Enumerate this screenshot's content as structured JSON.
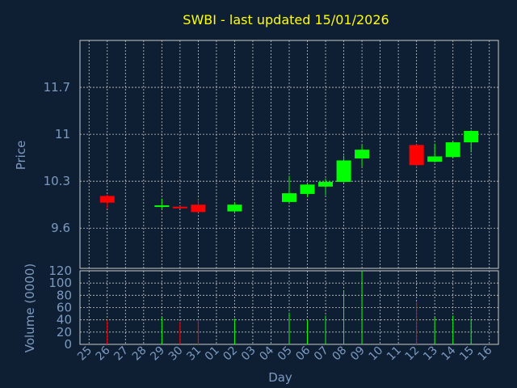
{
  "chart_data": [
    {
      "type": "candlestick",
      "title": "SWBI - last updated 15/01/2026",
      "ylabel": "Price",
      "ylim": [
        9.0,
        12.4
      ],
      "yticks": [
        "9.6",
        "10.3",
        "11",
        "11.7"
      ],
      "ytick_values": [
        9.6,
        10.3,
        11.0,
        11.7
      ],
      "grid": true,
      "up_color": "#00ff00",
      "down_color": "#ff0000",
      "x": [
        "26",
        "29",
        "30",
        "31",
        "02",
        "05",
        "06",
        "07",
        "08",
        "09",
        "12",
        "13",
        "14",
        "15"
      ],
      "candles": [
        {
          "day": "26",
          "open": 10.08,
          "close": 9.98,
          "high": 10.1,
          "low": 9.9
        },
        {
          "day": "29",
          "open": 9.92,
          "close": 9.94,
          "high": 10.04,
          "low": 9.89
        },
        {
          "day": "30",
          "open": 9.92,
          "close": 9.9,
          "high": 9.93,
          "low": 9.89
        },
        {
          "day": "31",
          "open": 9.95,
          "close": 9.84,
          "high": 10.03,
          "low": 9.83
        },
        {
          "day": "02",
          "open": 9.85,
          "close": 9.95,
          "high": 9.99,
          "low": 9.84
        },
        {
          "day": "05",
          "open": 9.99,
          "close": 10.12,
          "high": 10.38,
          "low": 9.98
        },
        {
          "day": "06",
          "open": 10.11,
          "close": 10.25,
          "high": 10.26,
          "low": 10.06
        },
        {
          "day": "07",
          "open": 10.22,
          "close": 10.29,
          "high": 10.34,
          "low": 10.09
        },
        {
          "day": "08",
          "open": 10.29,
          "close": 10.61,
          "high": 10.68,
          "low": 10.28
        },
        {
          "day": "09",
          "open": 10.64,
          "close": 10.77,
          "high": 10.84,
          "low": 10.52
        },
        {
          "day": "12",
          "open": 10.84,
          "close": 10.54,
          "high": 10.85,
          "low": 10.5
        },
        {
          "day": "13",
          "open": 10.59,
          "close": 10.67,
          "high": 10.86,
          "low": 10.58
        },
        {
          "day": "14",
          "open": 10.66,
          "close": 10.88,
          "high": 10.89,
          "low": 10.65
        },
        {
          "day": "15",
          "open": 10.88,
          "close": 11.05,
          "high": 11.06,
          "low": 10.73
        }
      ]
    },
    {
      "type": "bar",
      "ylabel": "Volume (0000)",
      "xlabel": "Day",
      "ylim": [
        0,
        120
      ],
      "yticks": [
        "0",
        "20",
        "40",
        "60",
        "80",
        "100",
        "120"
      ],
      "ytick_values": [
        0,
        20,
        40,
        60,
        80,
        100,
        120
      ],
      "grid": true,
      "categories": [
        "25",
        "26",
        "27",
        "28",
        "29",
        "30",
        "31",
        "01",
        "02",
        "03",
        "04",
        "05",
        "06",
        "07",
        "08",
        "09",
        "10",
        "11",
        "12",
        "13",
        "14",
        "15",
        "16"
      ],
      "volumes": [
        {
          "day": "26",
          "value": 40,
          "direction": "down"
        },
        {
          "day": "29",
          "value": 44,
          "direction": "up"
        },
        {
          "day": "30",
          "value": 37,
          "direction": "down"
        },
        {
          "day": "31",
          "value": 40,
          "direction": "down"
        },
        {
          "day": "02",
          "value": 42,
          "direction": "up"
        },
        {
          "day": "05",
          "value": 52,
          "direction": "up"
        },
        {
          "day": "06",
          "value": 40,
          "direction": "up"
        },
        {
          "day": "07",
          "value": 47,
          "direction": "up"
        },
        {
          "day": "08",
          "value": 88,
          "direction": "up"
        },
        {
          "day": "09",
          "value": 120,
          "direction": "up"
        },
        {
          "day": "12",
          "value": 69,
          "direction": "down"
        },
        {
          "day": "13",
          "value": 44,
          "direction": "up"
        },
        {
          "day": "14",
          "value": 47,
          "direction": "up"
        },
        {
          "day": "15",
          "value": 42,
          "direction": "up"
        }
      ]
    }
  ],
  "colors": {
    "background": "#0f1f33",
    "plot_background": "#0f1f33",
    "title": "#ffff00",
    "axis_text": "#7c9ac0",
    "grid": "#c8c8c8"
  }
}
